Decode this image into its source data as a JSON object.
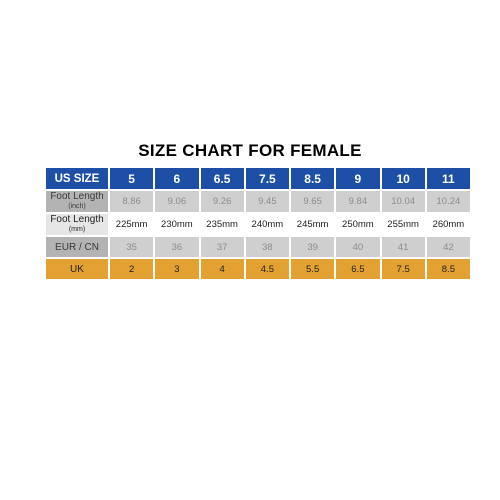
{
  "title": "SIZE CHART FOR FEMALE",
  "table": {
    "us_size": {
      "label": "US SIZE",
      "values": [
        "5",
        "6",
        "6.5",
        "7.5",
        "8.5",
        "9",
        "10",
        "11"
      ]
    },
    "foot_length_inch": {
      "label": "Foot Length",
      "unit": "(inch)",
      "values": [
        "8.86",
        "9.06",
        "9.26",
        "9.45",
        "9.65",
        "9.84",
        "10.04",
        "10.24"
      ]
    },
    "foot_length_mm": {
      "label": "Foot Length",
      "unit": "(mm)",
      "values": [
        "225mm",
        "230mm",
        "235mm",
        "240mm",
        "245mm",
        "250mm",
        "255mm",
        "260mm"
      ]
    },
    "eur_cn": {
      "label": "EUR / CN",
      "values": [
        "35",
        "36",
        "37",
        "38",
        "39",
        "40",
        "41",
        "42"
      ]
    },
    "uk": {
      "label": "UK",
      "values": [
        "2",
        "3",
        "4",
        "4.5",
        "5.5",
        "6.5",
        "7.5",
        "8.5"
      ]
    }
  },
  "colors": {
    "header_blue": "#1d4fa6",
    "row_grey": "#cfcfcf",
    "label_grey": "#b3b3b3",
    "uk_orange": "#e3a132"
  }
}
